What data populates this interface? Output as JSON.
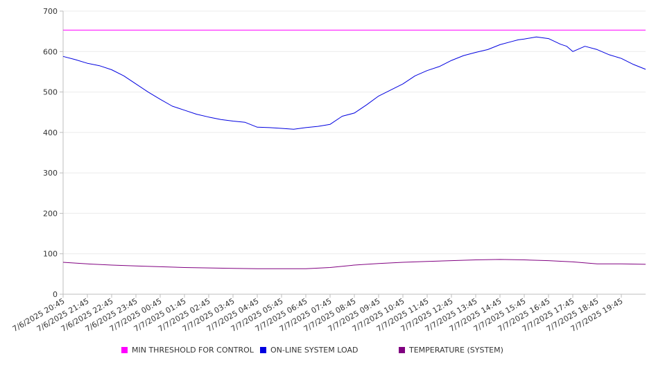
{
  "chart_data": {
    "type": "line",
    "ylim": [
      0,
      700
    ],
    "yticks": [
      0,
      100,
      200,
      300,
      400,
      500,
      600,
      700
    ],
    "xticks": [
      "7/6/2025 20:45",
      "7/6/2025 21:45",
      "7/6/2025 22:45",
      "7/6/2025 23:45",
      "7/7/2025 00:45",
      "7/7/2025 01:45",
      "7/7/2025 02:45",
      "7/7/2025 03:45",
      "7/7/2025 04:45",
      "7/7/2025 05:45",
      "7/7/2025 06:45",
      "7/7/2025 07:45",
      "7/7/2025 08:45",
      "7/7/2025 09:45",
      "7/7/2025 10:45",
      "7/7/2025 11:45",
      "7/7/2025 12:45",
      "7/7/2025 13:45",
      "7/7/2025 14:45",
      "7/7/2025 15:45",
      "7/7/2025 16:45",
      "7/7/2025 17:45",
      "7/7/2025 18:45",
      "7/7/2025 19:45"
    ],
    "x_start": "7/6/2025 20:45",
    "x_end": "7/7/2025 20:45",
    "grid": true,
    "legend_position": "bottom",
    "series": [
      {
        "name": "MIN THRESHOLD FOR CONTROL",
        "color": "#ff00ff",
        "x": [
          "7/6/2025 20:45",
          "7/7/2025 20:45"
        ],
        "values": [
          653,
          653
        ]
      },
      {
        "name": "ON-LINE SYSTEM LOAD",
        "color": "#0000e0",
        "x": [
          "7/6/2025 20:45",
          "7/6/2025 21:15",
          "7/6/2025 21:45",
          "7/6/2025 22:15",
          "7/6/2025 22:45",
          "7/6/2025 23:15",
          "7/6/2025 23:45",
          "7/7/2025 00:15",
          "7/7/2025 00:45",
          "7/7/2025 01:15",
          "7/7/2025 01:45",
          "7/7/2025 02:15",
          "7/7/2025 02:45",
          "7/7/2025 03:00",
          "7/7/2025 03:15",
          "7/7/2025 03:45",
          "7/7/2025 04:15",
          "7/7/2025 04:45",
          "7/7/2025 05:15",
          "7/7/2025 05:45",
          "7/7/2025 06:15",
          "7/7/2025 06:45",
          "7/7/2025 07:15",
          "7/7/2025 07:45",
          "7/7/2025 08:15",
          "7/7/2025 08:45",
          "7/7/2025 09:15",
          "7/7/2025 09:45",
          "7/7/2025 10:15",
          "7/7/2025 10:45",
          "7/7/2025 11:15",
          "7/7/2025 11:45",
          "7/7/2025 12:15",
          "7/7/2025 12:45",
          "7/7/2025 13:15",
          "7/7/2025 13:45",
          "7/7/2025 14:15",
          "7/7/2025 14:45",
          "7/7/2025 15:15",
          "7/7/2025 15:30",
          "7/7/2025 15:45",
          "7/7/2025 16:15",
          "7/7/2025 16:45",
          "7/7/2025 17:15",
          "7/7/2025 17:30",
          "7/7/2025 17:45",
          "7/7/2025 18:15",
          "7/7/2025 18:45",
          "7/7/2025 19:15",
          "7/7/2025 19:45",
          "7/7/2025 20:15",
          "7/7/2025 20:45"
        ],
        "values": [
          588,
          580,
          571,
          565,
          555,
          540,
          520,
          500,
          482,
          465,
          455,
          445,
          438,
          435,
          432,
          428,
          425,
          413,
          412,
          410,
          408,
          412,
          415,
          420,
          440,
          448,
          468,
          490,
          505,
          520,
          540,
          553,
          563,
          578,
          590,
          598,
          605,
          617,
          625,
          629,
          631,
          636,
          632,
          618,
          613,
          600,
          613,
          605,
          592,
          583,
          568,
          556
        ]
      },
      {
        "name": "TEMPERATURE (SYSTEM)",
        "color": "#800080",
        "x": [
          "7/6/2025 20:45",
          "7/6/2025 21:45",
          "7/6/2025 22:45",
          "7/6/2025 23:45",
          "7/7/2025 00:45",
          "7/7/2025 01:45",
          "7/7/2025 02:45",
          "7/7/2025 03:45",
          "7/7/2025 04:45",
          "7/7/2025 05:45",
          "7/7/2025 06:45",
          "7/7/2025 07:45",
          "7/7/2025 08:45",
          "7/7/2025 09:45",
          "7/7/2025 10:45",
          "7/7/2025 11:45",
          "7/7/2025 12:45",
          "7/7/2025 13:45",
          "7/7/2025 14:45",
          "7/7/2025 15:45",
          "7/7/2025 16:45",
          "7/7/2025 17:45",
          "7/7/2025 18:45",
          "7/7/2025 19:45",
          "7/7/2025 20:45"
        ],
        "values": [
          79,
          75,
          72,
          70,
          68,
          66,
          65,
          64,
          63,
          63,
          63,
          66,
          72,
          76,
          79,
          81,
          83,
          85,
          86,
          85,
          83,
          80,
          75,
          75,
          74
        ]
      }
    ]
  }
}
